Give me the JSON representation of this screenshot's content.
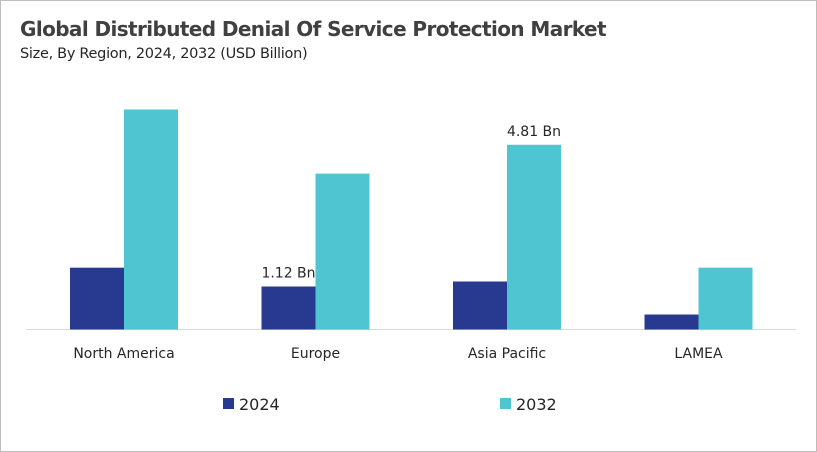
{
  "chart_data": {
    "type": "bar",
    "title": "Global Distributed Denial Of Service Protection Market",
    "subtitle": "Size, By Region, 2024, 2032 (USD Billion)",
    "categories": [
      "North America",
      "Europe",
      "Asia Pacific",
      "LAMEA"
    ],
    "series": [
      {
        "name": "2024",
        "color": "#283a8f",
        "values": [
          1.61,
          1.12,
          1.25,
          0.39
        ]
      },
      {
        "name": "2032",
        "color": "#4fc5d1",
        "values": [
          5.73,
          4.06,
          4.81,
          1.61
        ]
      }
    ],
    "data_labels": [
      {
        "series": 0,
        "category": 1,
        "text": "1.12 Bn"
      },
      {
        "series": 1,
        "category": 2,
        "text": "4.81 Bn"
      }
    ],
    "ylim": [
      0,
      6
    ],
    "grid": false,
    "legend": "bottom"
  }
}
